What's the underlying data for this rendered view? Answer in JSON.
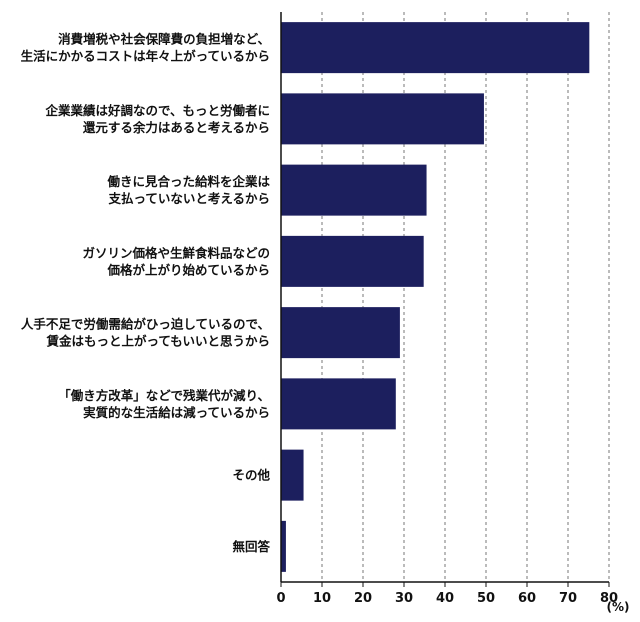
{
  "chart_data": {
    "type": "bar",
    "orientation": "horizontal",
    "categories": [
      [
        "消費増税や社会保障費の負担増など、",
        "生活にかかるコストは年々上がっているから"
      ],
      [
        "企業業績は好調なので、もっと労働者に",
        "還元する余力はあると考えるから"
      ],
      [
        "働きに見合った給料を企業は",
        "支払っていないと考えるから"
      ],
      [
        "ガソリン価格や生鮮食料品などの",
        "価格が上がり始めているから"
      ],
      [
        "人手不足で労働需給がひっ迫しているので、",
        "賃金はもっと上がってもいいと思うから"
      ],
      [
        "「働き方改革」などで残業代が減り、",
        "実質的な生活給は減っているから"
      ],
      [
        "その他"
      ],
      [
        "無回答"
      ]
    ],
    "values": [
      75.2,
      49.5,
      35.5,
      34.8,
      29.0,
      28.0,
      5.5,
      1.2
    ],
    "xlim": [
      0,
      80
    ],
    "ticks": [
      "0",
      "10",
      "20",
      "30",
      "40",
      "50",
      "60",
      "70",
      "80"
    ],
    "unit": "(%)",
    "grid": "vertical dashed",
    "bar_color": "#1c1f5e"
  }
}
